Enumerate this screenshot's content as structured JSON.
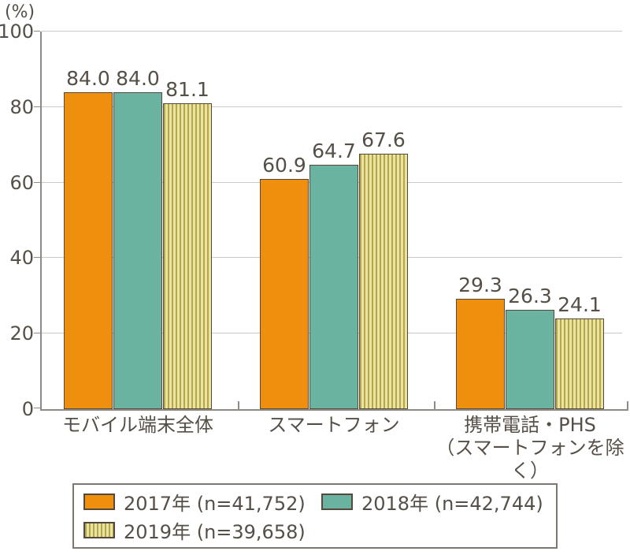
{
  "chart_data": {
    "type": "bar",
    "title": "",
    "unit_label": "(%)",
    "categories": [
      {
        "lines": [
          "モバイル端末全体"
        ]
      },
      {
        "lines": [
          "スマートフォン"
        ]
      },
      {
        "lines": [
          "携帯電話・PHS",
          "（スマートフォンを除く）"
        ]
      }
    ],
    "series": [
      {
        "name": "2017年",
        "legend_label": "2017年 (n=41,752)",
        "values": [
          84.0,
          60.9,
          29.3
        ],
        "color": "#ee8f0e",
        "pattern": "solid"
      },
      {
        "name": "2018年",
        "legend_label": "2018年 (n=42,744)",
        "values": [
          84.0,
          64.7,
          26.3
        ],
        "color": "#6ab3a1",
        "pattern": "solid"
      },
      {
        "name": "2019年",
        "legend_label": "2019年 (n=39,658)",
        "values": [
          81.1,
          67.6,
          24.1
        ],
        "color": "#ece3a0",
        "pattern": "vertical-stripes",
        "stripe_color": "#b3a74b"
      }
    ],
    "ylim": [
      0,
      100
    ],
    "yticks": [
      0,
      20,
      40,
      60,
      80,
      100
    ],
    "grid": true,
    "legend_position": "bottom",
    "value_label_decimals": 1
  }
}
